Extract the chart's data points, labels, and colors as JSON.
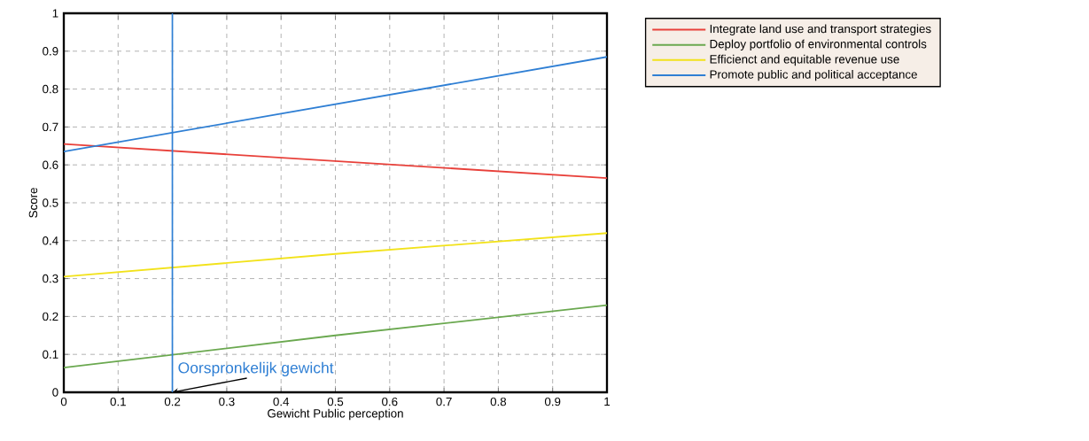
{
  "chart_data": {
    "type": "line",
    "xlabel": "Gewicht Public perception",
    "ylabel": "Score",
    "xlim": [
      0,
      1
    ],
    "ylim": [
      0,
      1
    ],
    "xticks": [
      0,
      0.1,
      0.2,
      0.3,
      0.4,
      0.5,
      0.6,
      0.7,
      0.8,
      0.9,
      1
    ],
    "yticks": [
      0,
      0.1,
      0.2,
      0.3,
      0.4,
      0.5,
      0.6,
      0.7,
      0.8,
      0.9,
      1
    ],
    "grid": true,
    "legend": "top right",
    "line_style": "solid",
    "x": [
      0,
      0.5,
      1
    ],
    "series": [
      {
        "name": "Integrate land use and transport strategies",
        "color": "#e8403a",
        "values": [
          0.655,
          0.61,
          0.565
        ]
      },
      {
        "name": "Deploy portfolio of environmental controls",
        "color": "#6aa84f",
        "values": [
          0.065,
          0.15,
          0.23
        ]
      },
      {
        "name": "Efficienct and equitable revenue use",
        "color": "#f2e21a",
        "values": [
          0.305,
          0.365,
          0.42
        ]
      },
      {
        "name": "Promote public and political acceptance",
        "color": "#2f7fd4",
        "values": [
          0.635,
          0.76,
          0.885
        ]
      }
    ],
    "ref_lines": [
      {
        "axis": "x",
        "value": 0.2,
        "color": "#2f7fd4",
        "label": "Oorspronkelijk gewicht"
      }
    ]
  }
}
